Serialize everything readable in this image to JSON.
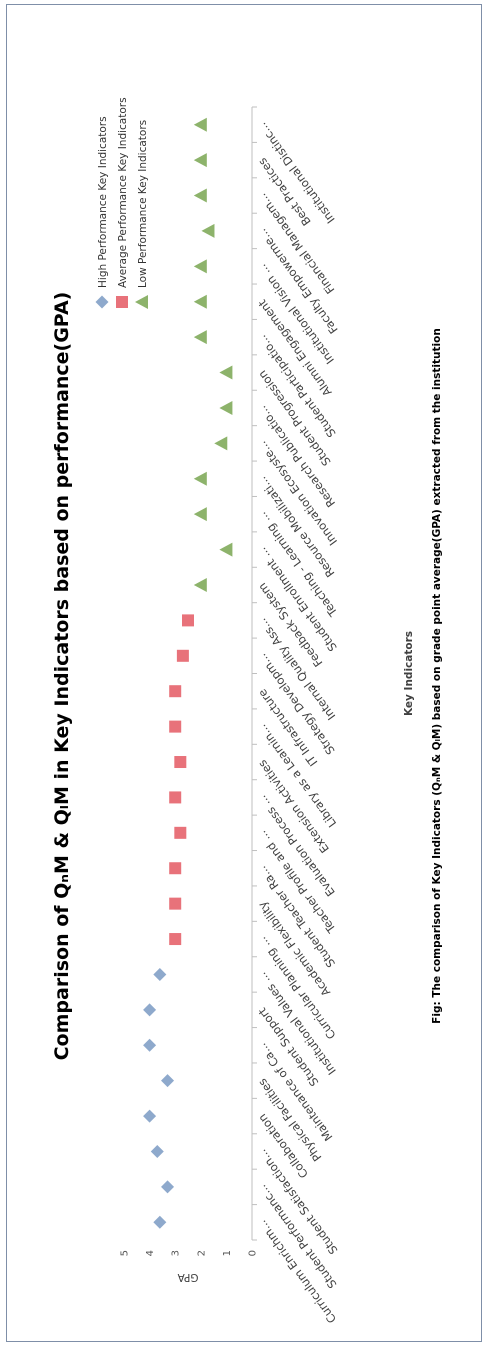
{
  "chart_data": {
    "type": "scatter",
    "title": "Comparison of QₙM & QₗM in Key Indicators based on performance(GPA)",
    "xlabel": "Key Indicators",
    "ylabel": "GPA",
    "ylim": [
      0,
      5
    ],
    "yticks": [
      "0",
      "1",
      "2",
      "3",
      "4",
      "5"
    ],
    "legend_position": "right",
    "categories": [
      "Curriculum Enrichm...",
      "Student Performanc...",
      "Student Satisfaction...",
      "Collaboration",
      "Physical Facilities",
      "Maintenance of Ca...",
      "Student Support",
      "Institutional Values ...",
      "Curricular Planning ...",
      "Academic Flexibility",
      "Student Teacher Ra...",
      "Teacher Profile and ...",
      "Evaluation Process ...",
      "Extension Activities",
      "Library as a Learnin...",
      "IT Infrastructure",
      "Strategy Developm...",
      "Internal Quality Ass...",
      "Feedback System",
      "Student Enrollment ...",
      "Teaching - Learning ...",
      "Resource Mobilizati...",
      "Innovation Ecosyste...",
      "Research Publicatio...",
      "Student Progression",
      "Student Participatio...",
      "Alumni Engagement",
      "Institutional Vision ...",
      "Faculty Empowerme...",
      "Financial Managem...",
      "Best Practices",
      "Institutional Distinc..."
    ],
    "series": [
      {
        "name": "High Performance Key Indicators",
        "marker": "diamond",
        "color": "#8ea9cc",
        "values": [
          3.6,
          3.3,
          3.7,
          4.0,
          3.3,
          4.0,
          4.0,
          3.6,
          null,
          null,
          null,
          null,
          null,
          null,
          null,
          null,
          null,
          null,
          null,
          null,
          null,
          null,
          null,
          null,
          null,
          null,
          null,
          null,
          null,
          null,
          null,
          null
        ]
      },
      {
        "name": "Average Performance Key Indicators",
        "marker": "square",
        "color": "#e8727a",
        "values": [
          null,
          null,
          null,
          null,
          null,
          null,
          null,
          null,
          3.0,
          3.0,
          3.0,
          2.8,
          3.0,
          2.8,
          3.0,
          3.0,
          2.7,
          2.5,
          null,
          null,
          null,
          null,
          null,
          null,
          null,
          null,
          null,
          null,
          null,
          null,
          null,
          null
        ]
      },
      {
        "name": "Low Performance Key Indicators",
        "marker": "triangle",
        "color": "#8db36b",
        "values": [
          null,
          null,
          null,
          null,
          null,
          null,
          null,
          null,
          null,
          null,
          null,
          null,
          null,
          null,
          null,
          null,
          null,
          null,
          2.0,
          1.0,
          2.0,
          2.0,
          1.2,
          1.0,
          1.0,
          2.0,
          2.0,
          2.0,
          1.7,
          2.0,
          2.0,
          2.0
        ]
      }
    ]
  },
  "caption": "Fig: The comparison of Key Indicators (QₙM & QₗM) based on grade point average(GPA) extracted from the institution"
}
